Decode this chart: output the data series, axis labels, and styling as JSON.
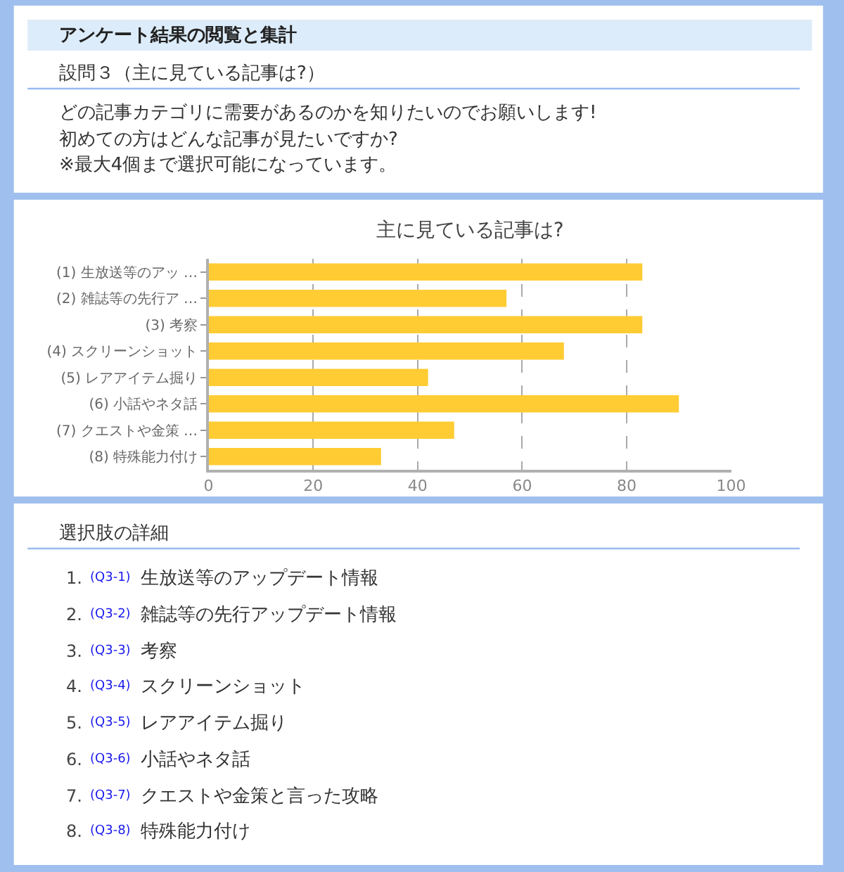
{
  "chart_data": {
    "type": "bar",
    "orientation": "horizontal",
    "title": "主に見ている記事は?",
    "categories": [
      "(1) 生放送等のアッ …",
      "(2) 雑誌等の先行ア …",
      "(3) 考察",
      "(4) スクリーンショット",
      "(5) レアアイテム掘り",
      "(6) 小話やネタ話",
      "(7) クエストや金策 …",
      "(8) 特殊能力付け"
    ],
    "values": [
      83,
      57,
      83,
      68,
      42,
      90,
      47,
      33
    ],
    "color": "#ffcc33",
    "xlim": [
      0,
      100
    ],
    "xticks": [
      0,
      20,
      40,
      60,
      80,
      100
    ],
    "grid": "x",
    "annotations": [
      "アンケート結果の閲覧と集計",
      "設問３（主に見ている記事は?）",
      "どの記事カテゴリに需要があるのかを知りたいのでお願いします!",
      "初めての方はどんな記事が見たいですか?",
      "※最大4個まで選択可能になっています。",
      "選択肢の詳細",
      "1. (Q3-1) 生放送等のアップデート情報",
      "2. (Q3-2) 雑誌等の先行アップデート情報",
      "3. (Q3-3) 考察",
      "4. (Q3-4) スクリーンショット",
      "5. (Q3-5) レアアイテム掘り",
      "6. (Q3-6) 小話やネタ話",
      "7. (Q3-7) クエストや金策と言った攻略",
      "8. (Q3-8) 特殊能力付け"
    ]
  }
}
